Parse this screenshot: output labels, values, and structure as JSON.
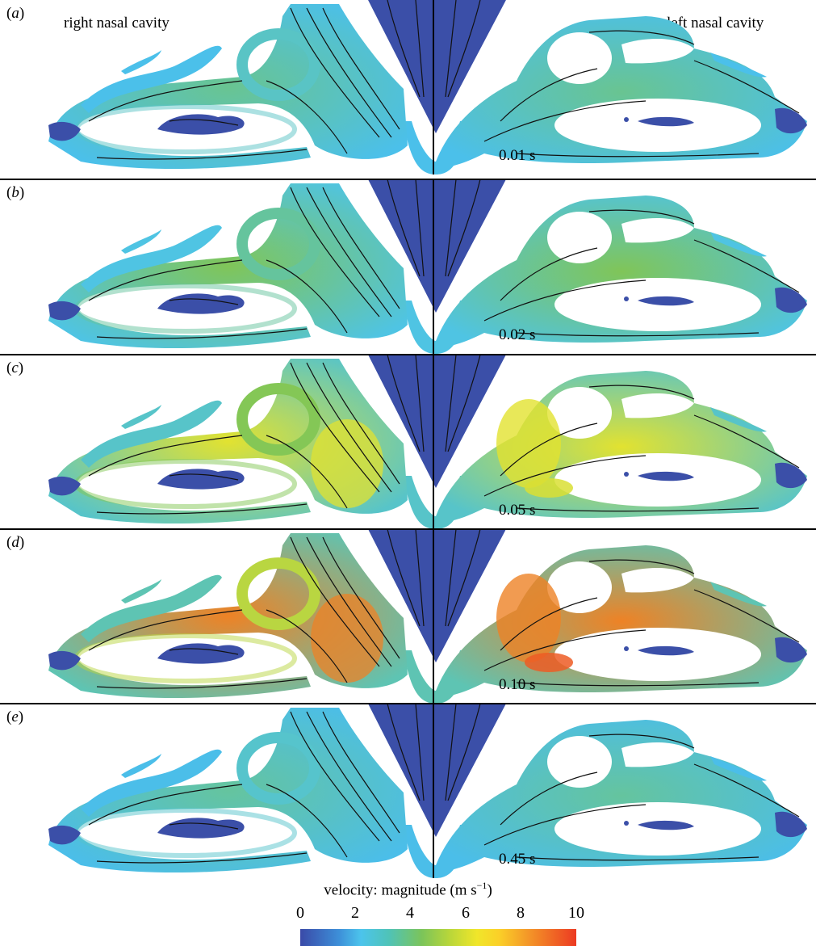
{
  "header": {
    "right_cavity_label": "right nasal cavity",
    "left_cavity_label": "left nasal cavity"
  },
  "panels": [
    {
      "letter": "a",
      "time": "0.01 s",
      "intensity": 0.15
    },
    {
      "letter": "b",
      "time": "0.02 s",
      "intensity": 0.3
    },
    {
      "letter": "c",
      "time": "0.05 s",
      "intensity": 0.6
    },
    {
      "letter": "d",
      "time": "0.10 s",
      "intensity": 0.85
    },
    {
      "letter": "e",
      "time": "0.45 s",
      "intensity": 0.12
    }
  ],
  "colorbar": {
    "title": "velocity: magnitude (m s",
    "title_exponent": "−1",
    "title_suffix": ")",
    "ticks": [
      "0",
      "2",
      "4",
      "6",
      "8",
      "10"
    ],
    "colors": [
      "#3a4aa8",
      "#4cc4ec",
      "#7bc45a",
      "#f0e62a",
      "#ec3a22"
    ]
  }
}
